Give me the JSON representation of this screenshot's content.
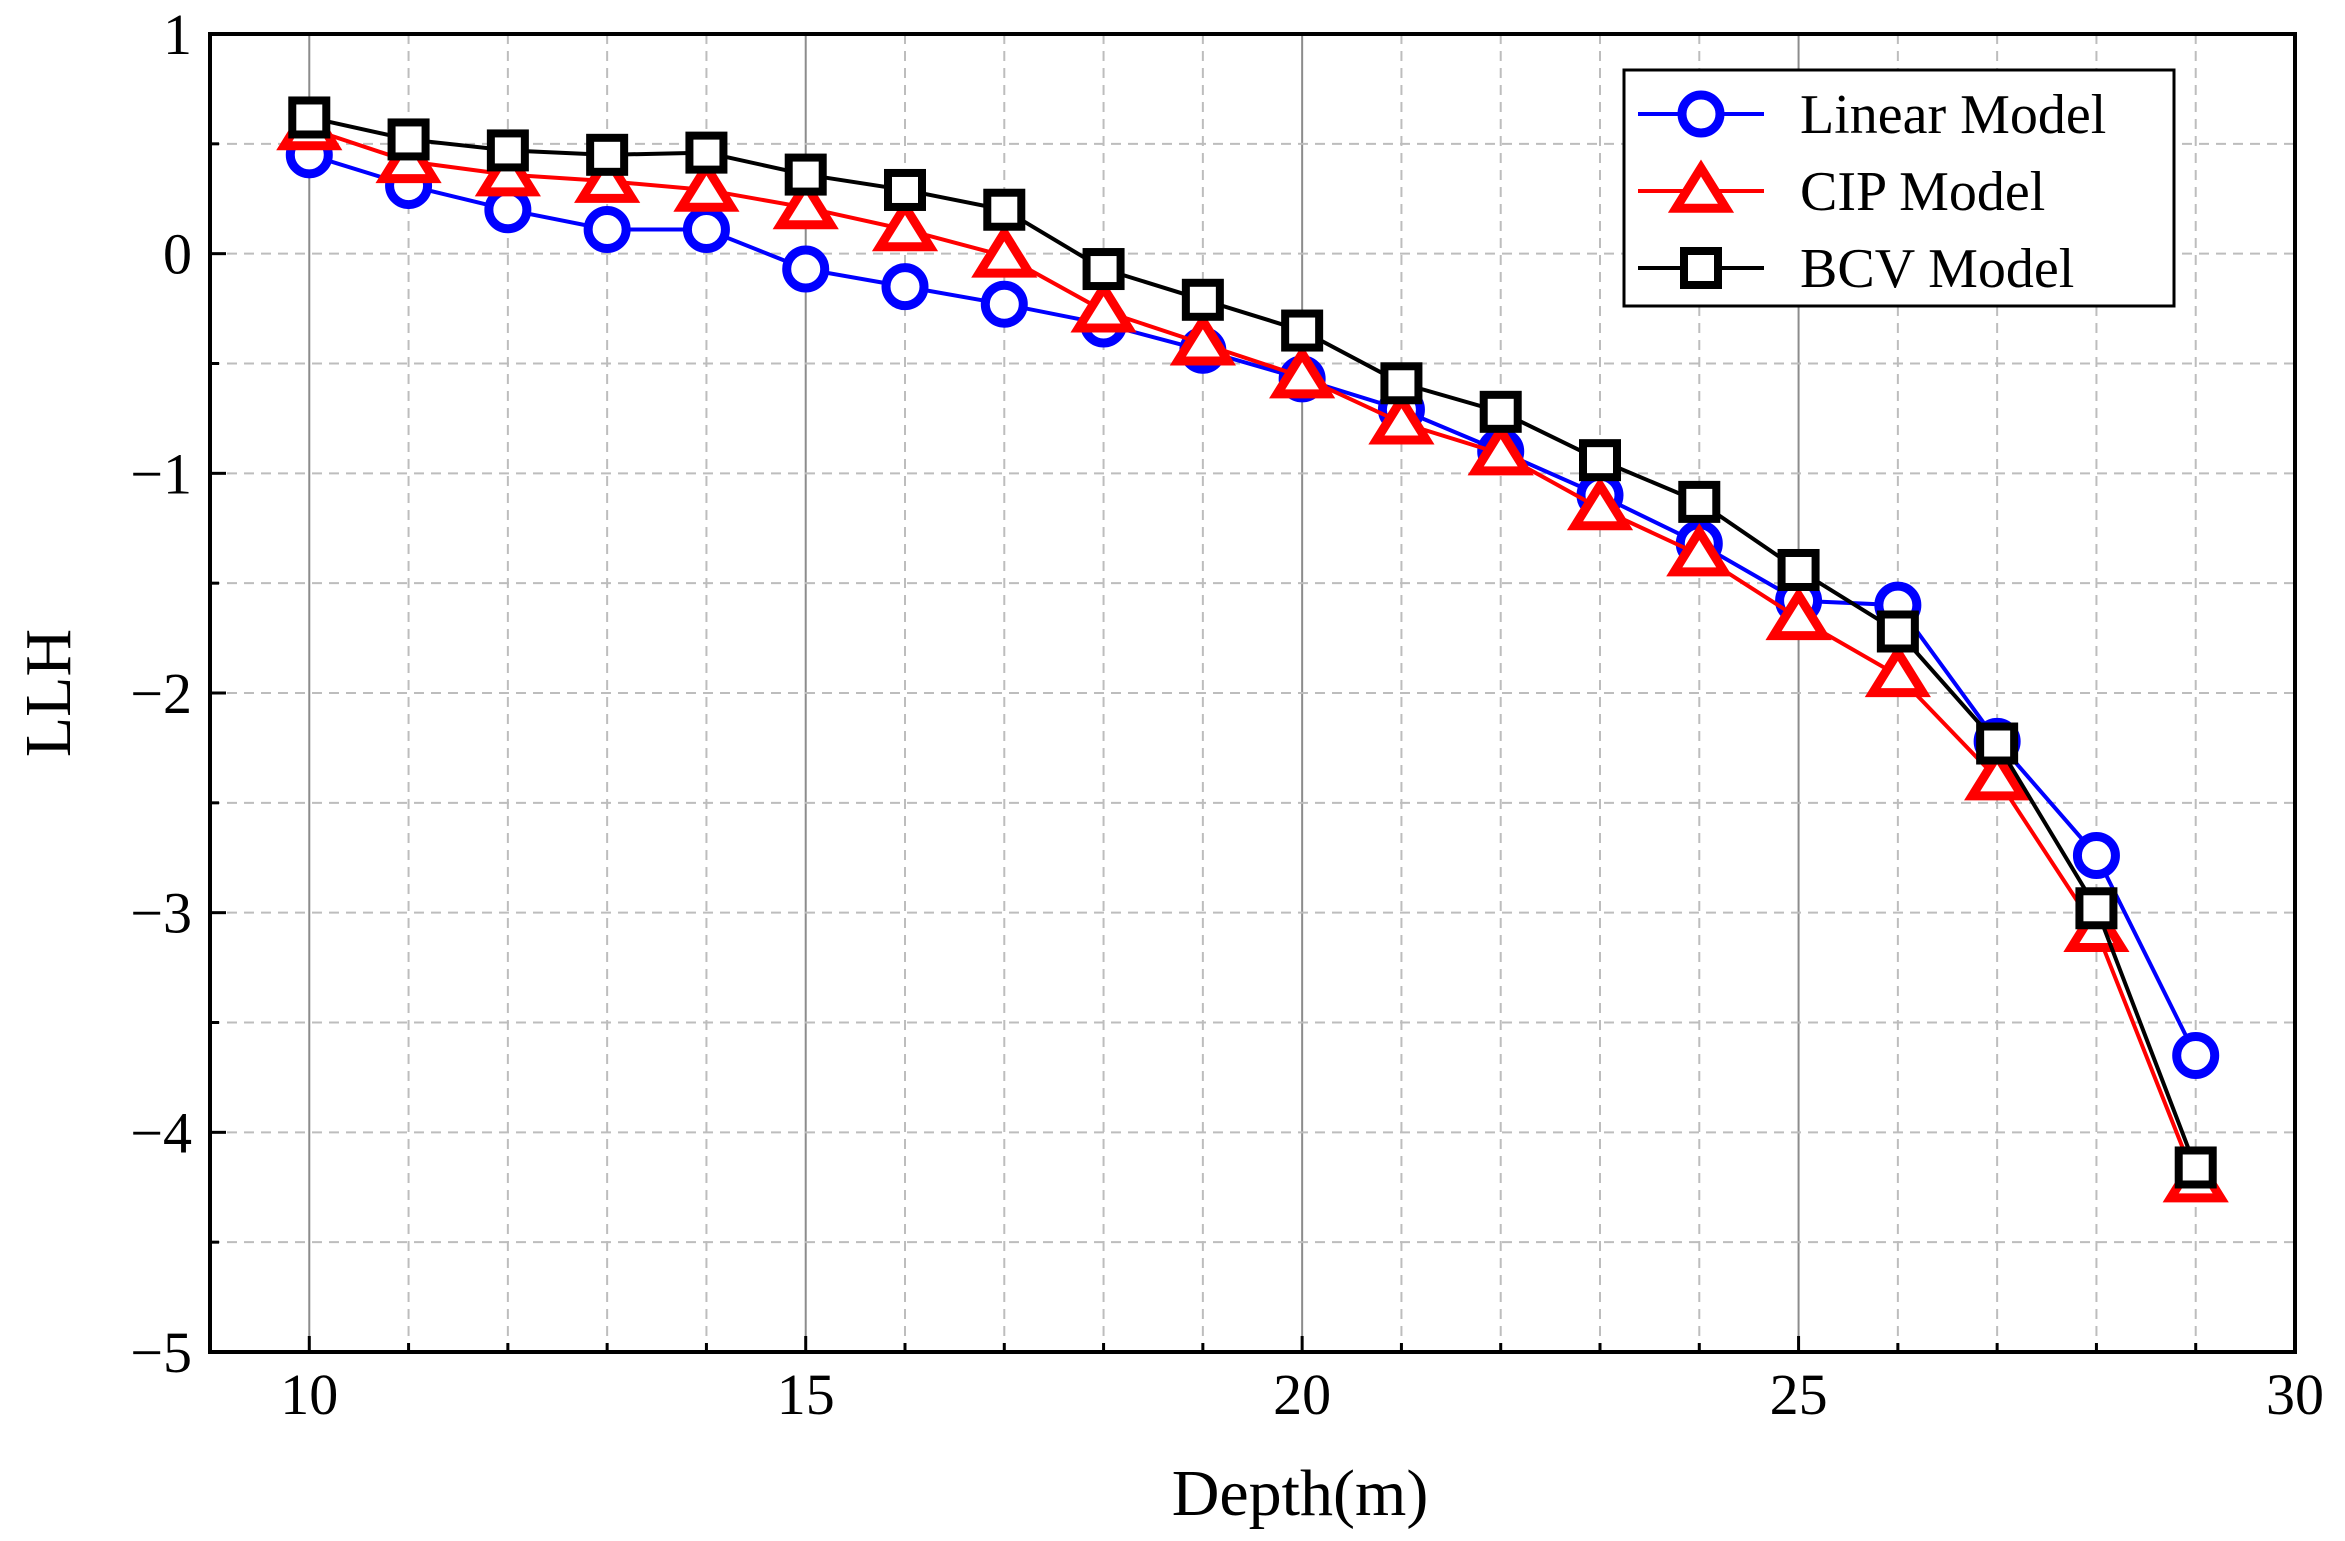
{
  "chart_data": {
    "type": "line",
    "title": "",
    "xlabel": "Depth(m)",
    "ylabel": "LLH",
    "xlim": [
      9,
      30
    ],
    "ylim": [
      -5,
      1
    ],
    "xticks": [
      10,
      15,
      20,
      25,
      30
    ],
    "yticks": [
      -5,
      -4,
      -3,
      -2,
      -1,
      0,
      1
    ],
    "xtick_labels": [
      "10",
      "15",
      "20",
      "25",
      "30"
    ],
    "ytick_labels": [
      "−5",
      "−4",
      "−3",
      "−2",
      "−1",
      "0",
      "1"
    ],
    "grid": true,
    "legend_position": "top-right",
    "x": [
      10,
      11,
      12,
      13,
      14,
      15,
      16,
      17,
      18,
      19,
      20,
      21,
      22,
      23,
      24,
      25,
      26,
      27,
      28,
      29
    ],
    "series": [
      {
        "name": "Linear Model",
        "color": "#0000ff",
        "marker": "circle",
        "values": [
          0.45,
          0.31,
          0.2,
          0.11,
          0.11,
          -0.07,
          -0.15,
          -0.23,
          -0.32,
          -0.44,
          -0.57,
          -0.71,
          -0.9,
          -1.1,
          -1.32,
          -1.58,
          -1.6,
          -2.22,
          -2.74,
          -3.65
        ]
      },
      {
        "name": "CIP Model",
        "color": "#ff0000",
        "marker": "triangle",
        "values": [
          0.57,
          0.42,
          0.36,
          0.33,
          0.29,
          0.21,
          0.11,
          -0.01,
          -0.26,
          -0.41,
          -0.56,
          -0.77,
          -0.91,
          -1.16,
          -1.37,
          -1.66,
          -1.92,
          -2.39,
          -3.08,
          -4.22
        ]
      },
      {
        "name": "BCV Model",
        "color": "#000000",
        "marker": "square",
        "values": [
          0.62,
          0.52,
          0.47,
          0.45,
          0.46,
          0.36,
          0.29,
          0.2,
          -0.07,
          -0.21,
          -0.35,
          -0.59,
          -0.72,
          -0.94,
          -1.13,
          -1.44,
          -1.72,
          -2.23,
          -2.98,
          -4.16
        ]
      }
    ]
  }
}
